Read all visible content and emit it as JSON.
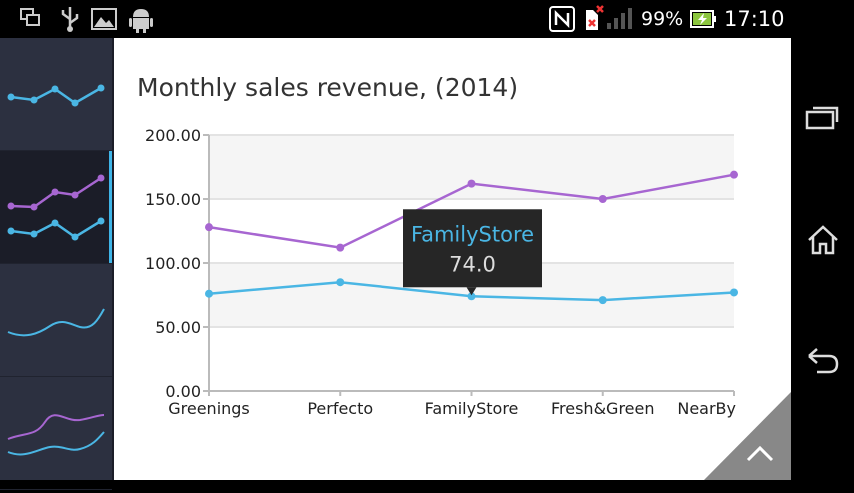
{
  "status_bar": {
    "battery_percent": "99%",
    "time": "17:10",
    "icons": [
      "windows-icon",
      "usb-icon",
      "image-icon",
      "android-icon",
      "nfc-icon",
      "sim-error-icon",
      "signal-icon",
      "battery-charging-icon"
    ]
  },
  "sidebar": {
    "items": [
      {
        "name": "line-chart-thumbnail",
        "selected": false
      },
      {
        "name": "multi-line-chart-thumbnail",
        "selected": true
      },
      {
        "name": "spline-chart-thumbnail",
        "selected": false
      },
      {
        "name": "multi-spline-chart-thumbnail",
        "selected": false
      }
    ]
  },
  "colors": {
    "series_blue": "#4ab6e4",
    "series_purple": "#a766d1",
    "accent": "#3fb5e8",
    "tooltip_bg": "#262626"
  },
  "tooltip": {
    "category": "FamilyStore",
    "value": "74.0"
  },
  "chart_data": {
    "type": "line",
    "title": "Monthly sales revenue, (2014)",
    "categories": [
      "Greenings",
      "Perfecto",
      "FamilyStore",
      "Fresh&Green",
      "NearBy"
    ],
    "ylim": [
      0,
      200
    ],
    "yticks": [
      "0.00",
      "50.00",
      "100.00",
      "150.00",
      "200.00"
    ],
    "grid": true,
    "series": [
      {
        "color": "#a766d1",
        "values": [
          128,
          112,
          162,
          150,
          169
        ]
      },
      {
        "color": "#4ab6e4",
        "values": [
          76,
          85,
          74,
          71,
          77
        ]
      }
    ]
  },
  "nav_bar": {
    "buttons": [
      "recent-apps-icon",
      "home-icon",
      "back-icon"
    ]
  }
}
